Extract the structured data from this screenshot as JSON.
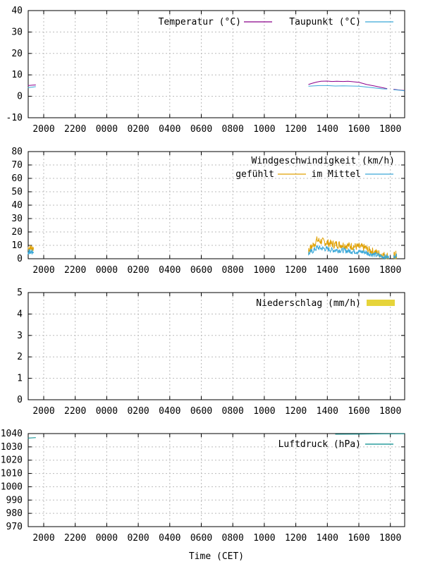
{
  "x_ticks": [
    "2000",
    "2200",
    "0000",
    "0200",
    "0400",
    "0600",
    "0800",
    "1000",
    "1200",
    "1400",
    "1600",
    "1800"
  ],
  "x_axis_title": "Time (CET)",
  "chart_data": [
    {
      "type": "line",
      "ylim": [
        -10,
        40
      ],
      "y_ticks": [
        -10,
        0,
        10,
        20,
        30,
        40
      ],
      "grid": true,
      "legend_position": "top-right",
      "series": [
        {
          "name": "Temperatur (°C)",
          "color": "#8b008b",
          "points": [
            [
              19.0,
              5.0
            ],
            [
              19.3,
              5.2
            ],
            [
              19.5,
              5.3
            ],
            [
              12.8,
              5.5
            ],
            [
              13.0,
              6.0
            ],
            [
              13.3,
              6.6
            ],
            [
              13.6,
              7.0
            ],
            [
              14.0,
              7.1
            ],
            [
              14.3,
              6.9
            ],
            [
              14.6,
              7.0
            ],
            [
              15.0,
              6.9
            ],
            [
              15.3,
              7.0
            ],
            [
              15.6,
              6.8
            ],
            [
              16.0,
              6.5
            ],
            [
              16.5,
              5.5
            ],
            [
              17.0,
              4.8
            ],
            [
              17.5,
              4.0
            ],
            [
              17.8,
              3.6
            ],
            [
              18.2,
              3.3
            ],
            [
              18.5,
              3.0
            ],
            [
              18.9,
              2.7
            ]
          ]
        },
        {
          "name": "Taupunkt (°C)",
          "color": "#3aa8d8",
          "points": [
            [
              19.0,
              4.0
            ],
            [
              19.3,
              4.3
            ],
            [
              19.5,
              4.5
            ],
            [
              12.8,
              4.7
            ],
            [
              13.0,
              4.8
            ],
            [
              13.5,
              5.0
            ],
            [
              14.0,
              5.0
            ],
            [
              14.5,
              4.8
            ],
            [
              15.0,
              4.9
            ],
            [
              15.5,
              4.8
            ],
            [
              16.0,
              4.7
            ],
            [
              16.5,
              4.3
            ],
            [
              17.0,
              3.9
            ],
            [
              17.5,
              3.5
            ],
            [
              17.8,
              3.4
            ],
            [
              18.2,
              3.1
            ],
            [
              18.5,
              2.9
            ],
            [
              18.9,
              2.6
            ]
          ]
        }
      ],
      "segments": [
        [
          0,
          3
        ],
        [
          3,
          18
        ],
        [
          18,
          21
        ]
      ],
      "segments_b": [
        [
          0,
          3
        ],
        [
          3,
          15
        ],
        [
          15,
          18
        ]
      ]
    },
    {
      "type": "line",
      "ylim": [
        0,
        80
      ],
      "y_ticks": [
        0,
        10,
        20,
        30,
        40,
        50,
        60,
        70,
        80
      ],
      "grid": true,
      "legend_title": "Windgeschwindigkeit (km/h)",
      "legend_position": "top-right",
      "series": [
        {
          "name": "gefühlt",
          "color": "#e0a000"
        },
        {
          "name": "im Mittel",
          "color": "#3aa8d8"
        }
      ]
    },
    {
      "type": "bar",
      "ylim": [
        0,
        5
      ],
      "y_ticks": [
        0,
        1,
        2,
        3,
        4,
        5
      ],
      "grid": true,
      "legend_position": "top-right",
      "series": [
        {
          "name": "Niederschlag (mm/h)",
          "color": "#e6d43a",
          "values": []
        }
      ]
    },
    {
      "type": "line",
      "ylim": [
        970,
        1040
      ],
      "y_ticks": [
        970,
        980,
        990,
        1000,
        1010,
        1020,
        1030,
        1040
      ],
      "grid": true,
      "legend_position": "top-right",
      "series": [
        {
          "name": "Luftdruck (hPa)",
          "color": "#008b8b",
          "points": [
            [
              19.0,
              1036.6
            ],
            [
              19.5,
              1037.0
            ],
            [
              14.5,
              1039.5
            ],
            [
              16.0,
              1039.6
            ],
            [
              17.5,
              1039.8
            ],
            [
              18.9,
              1039.9
            ]
          ]
        }
      ]
    }
  ]
}
